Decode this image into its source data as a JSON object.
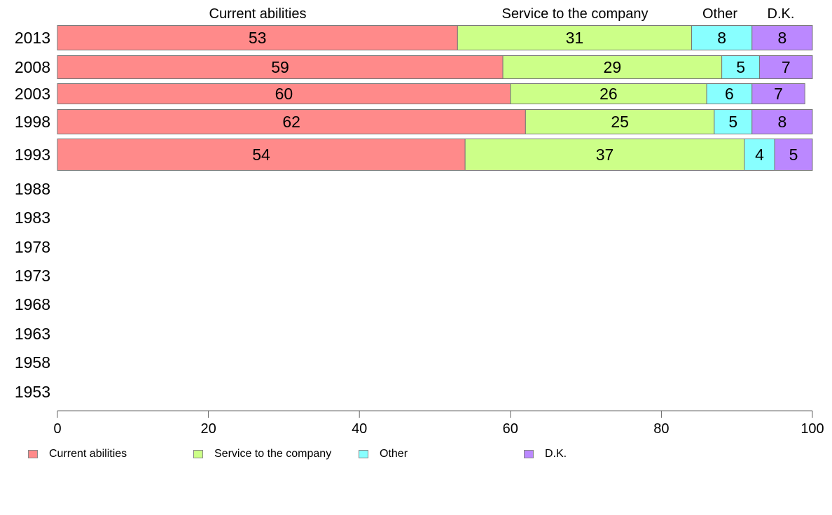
{
  "chart_data": {
    "type": "bar",
    "orientation": "horizontal",
    "stacked": true,
    "categories": [
      "2013",
      "2008",
      "2003",
      "1998",
      "1993",
      "1988",
      "1983",
      "1978",
      "1973",
      "1968",
      "1963",
      "1958",
      "1953"
    ],
    "series": [
      {
        "name": "Current abilities",
        "color": "#ff8a8a",
        "values": [
          53,
          59,
          60,
          62,
          54,
          null,
          null,
          null,
          null,
          null,
          null,
          null,
          null
        ]
      },
      {
        "name": "Service to the company",
        "color": "#ccff88",
        "values": [
          31,
          29,
          26,
          25,
          37,
          null,
          null,
          null,
          null,
          null,
          null,
          null,
          null
        ]
      },
      {
        "name": "Other",
        "color": "#88ffff",
        "values": [
          8,
          5,
          6,
          5,
          4,
          null,
          null,
          null,
          null,
          null,
          null,
          null,
          null
        ]
      },
      {
        "name": "D.K.",
        "color": "#bb88ff",
        "values": [
          8,
          7,
          7,
          8,
          5,
          null,
          null,
          null,
          null,
          null,
          null,
          null,
          null
        ]
      }
    ],
    "xlim": [
      0,
      100
    ],
    "xticks": [
      "0",
      "20",
      "40",
      "60",
      "80",
      "100"
    ],
    "column_headers": [
      "Current abilities",
      "Service to the company",
      "Other",
      "D.K."
    ],
    "legend": {
      "placement": "bottom",
      "items": [
        "Current abilities",
        "Service to the company",
        "Other",
        "D.K."
      ]
    },
    "grid": false,
    "xlabel": "",
    "ylabel": ""
  }
}
